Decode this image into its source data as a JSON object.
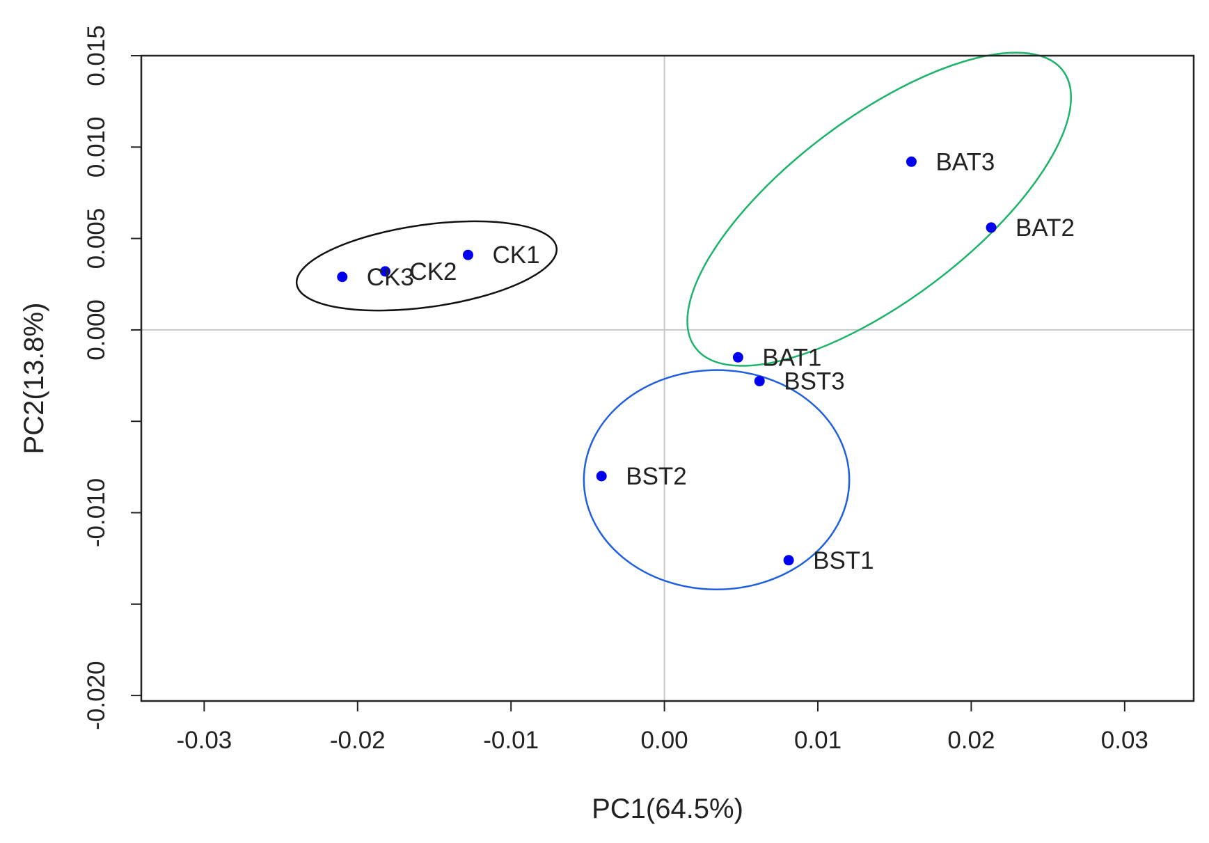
{
  "chart_data": {
    "type": "scatter",
    "title": "",
    "xlabel": "PC1(64.5%)",
    "ylabel": "PC2(13.8%)",
    "xlim": [
      -0.0341,
      0.0345
    ],
    "ylim": [
      -0.0203,
      0.015
    ],
    "xticks": [
      -0.03,
      -0.02,
      -0.01,
      0.0,
      0.01,
      0.02,
      0.03
    ],
    "xtick_labels": [
      "-0.03",
      "-0.02",
      "-0.01",
      "0.00",
      "0.01",
      "0.02",
      "0.03"
    ],
    "yticks": [
      -0.02,
      -0.015,
      -0.01,
      -0.005,
      0.0,
      0.005,
      0.01,
      0.015
    ],
    "ytick_labels": [
      "-0.020",
      "",
      "-0.010",
      "",
      "0.000",
      "0.005",
      "0.010",
      "0.015"
    ],
    "reference_lines": {
      "x": 0,
      "y": 0,
      "color": "#c8c8c8"
    },
    "point_color": "#0000ee",
    "points": [
      {
        "label": "CK1",
        "x": -0.0128,
        "y": 0.0041
      },
      {
        "label": "CK2",
        "x": -0.0182,
        "y": 0.0032
      },
      {
        "label": "CK3",
        "x": -0.021,
        "y": 0.0029
      },
      {
        "label": "BAT1",
        "x": 0.0048,
        "y": -0.0015
      },
      {
        "label": "BAT2",
        "x": 0.0213,
        "y": 0.0056
      },
      {
        "label": "BAT3",
        "x": 0.0161,
        "y": 0.0092
      },
      {
        "label": "BST1",
        "x": 0.0081,
        "y": -0.0126
      },
      {
        "label": "BST2",
        "x": -0.0041,
        "y": -0.008
      },
      {
        "label": "BST3",
        "x": 0.0062,
        "y": -0.0028
      }
    ],
    "ellipses": [
      {
        "group": "CK",
        "color": "#111111",
        "cx": -0.0155,
        "cy": 0.0035,
        "rx": 0.00855,
        "ry": 0.00225,
        "angle_deg": -8
      },
      {
        "group": "BAT",
        "color": "#1db36a",
        "cx": 0.014,
        "cy": 0.0066,
        "rx": 0.015,
        "ry": 0.005,
        "angle_deg": -37
      },
      {
        "group": "BST",
        "color": "#1f5fe0",
        "cx": 0.0034,
        "cy": -0.0082,
        "rx": 0.00865,
        "ry": 0.006,
        "angle_deg": 0
      }
    ]
  }
}
